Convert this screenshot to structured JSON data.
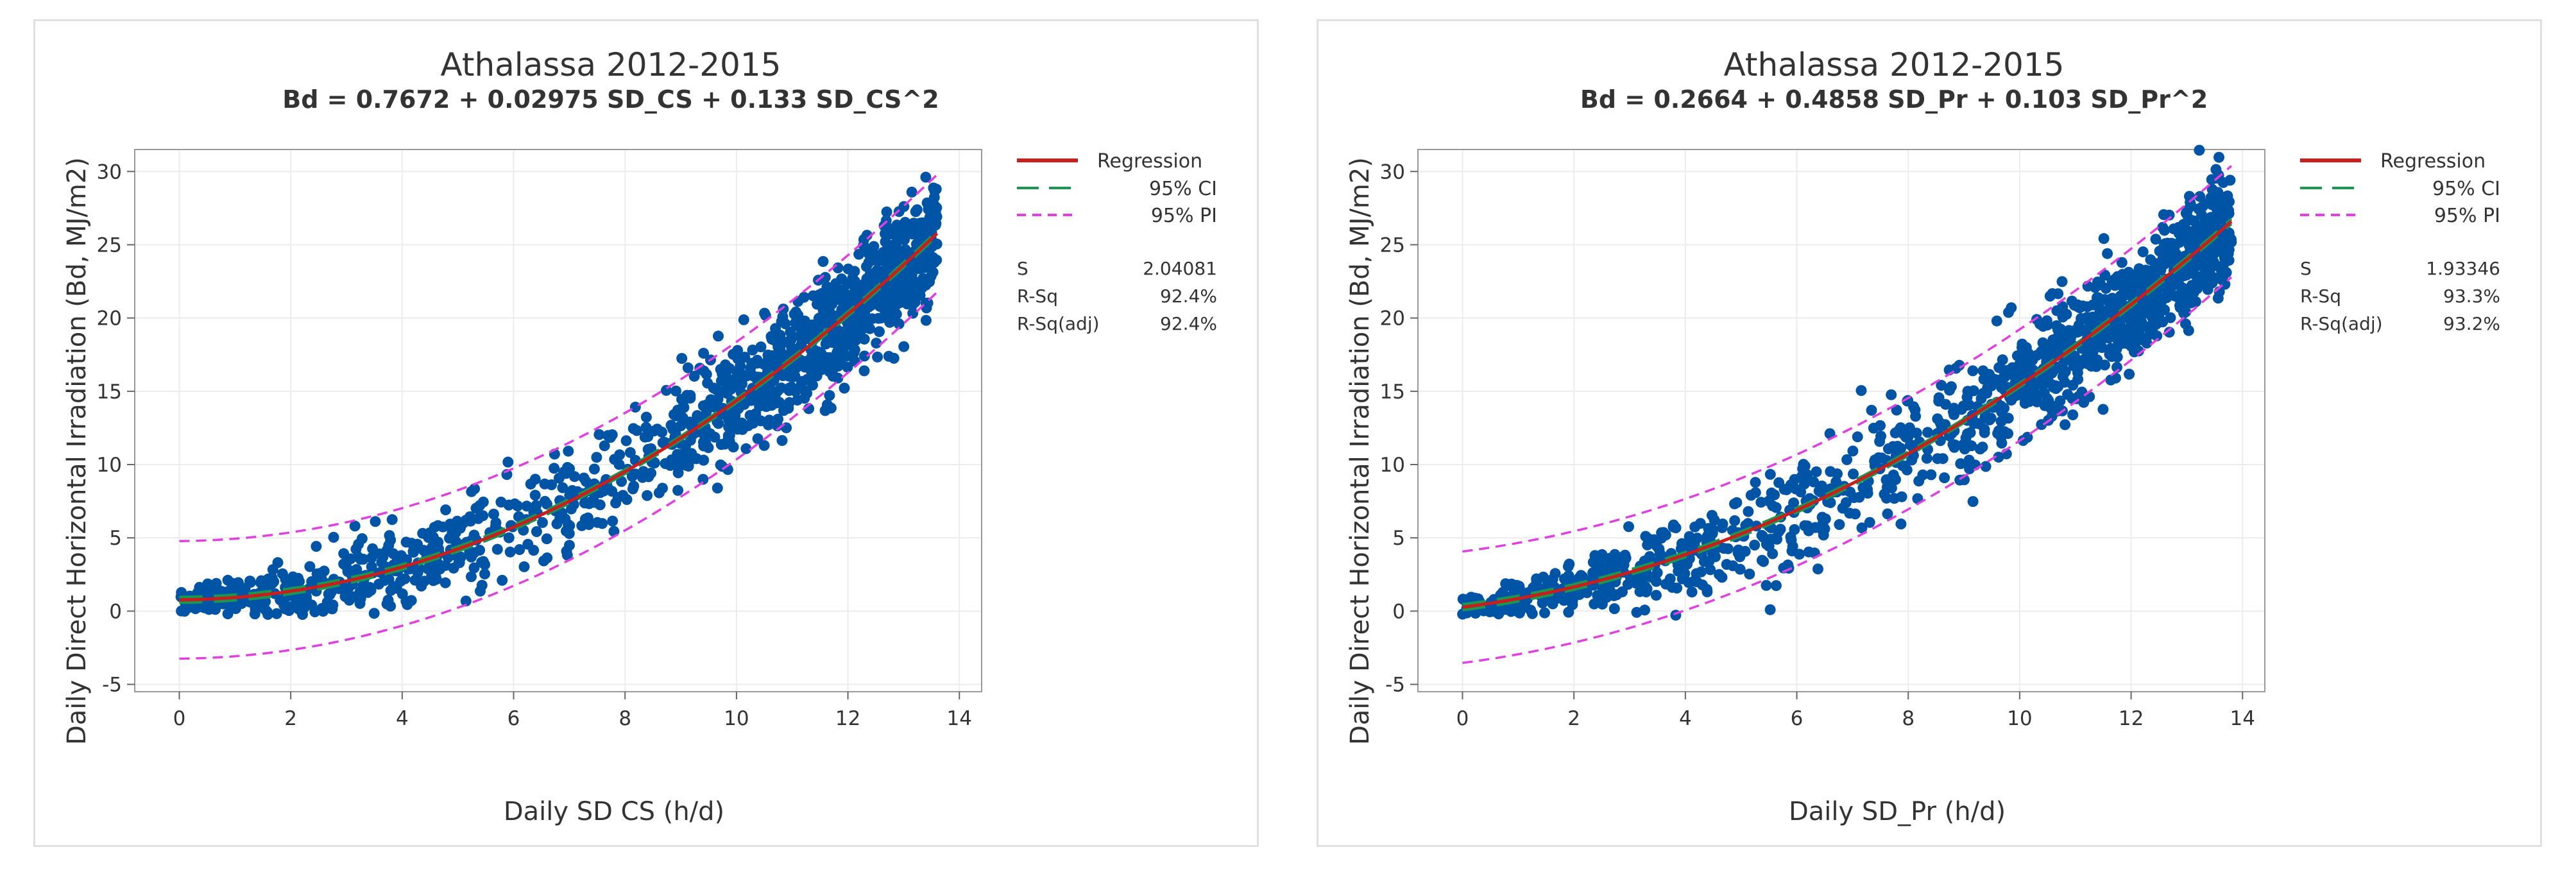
{
  "colors": {
    "points": "#0054a6",
    "regression": "#c81e1e",
    "ci": "#1a9850",
    "pi": "#e040e0",
    "grid": "#ececec",
    "frame": "#999999"
  },
  "chart_data": [
    {
      "type": "scatter",
      "title": "Athalassa 2012-2015",
      "subtitle": "Bd = 0.7672 + 0.02975 SD_CS + 0.133 SD_CS^2",
      "xlabel": "Daily SD CS (h/d)",
      "ylabel": "Daily Direct Horizontal Irradiation (Bd, MJ/m2)",
      "xlim": [
        -0.8,
        14.4
      ],
      "ylim": [
        -5.5,
        31.5
      ],
      "xticks": [
        0,
        2,
        4,
        6,
        8,
        10,
        12,
        14
      ],
      "yticks": [
        -5,
        0,
        5,
        10,
        15,
        20,
        25,
        30
      ],
      "grid": true,
      "legend_position": "right",
      "fit": {
        "intercept": 0.7672,
        "linear": 0.02975,
        "quadratic": 0.133,
        "s": 2.04081
      },
      "point_count": 1300,
      "x_range": [
        0,
        13.6
      ],
      "legend": [
        {
          "label": "Regression",
          "style": "solid",
          "color_key": "regression"
        },
        {
          "label": "95% CI",
          "style": "long-dash",
          "color_key": "ci"
        },
        {
          "label": "95% PI",
          "style": "dash",
          "color_key": "pi"
        }
      ],
      "stats": [
        {
          "label": "S",
          "value": "2.04081"
        },
        {
          "label": "R-Sq",
          "value": "92.4%"
        },
        {
          "label": "R-Sq(adj)",
          "value": "92.4%"
        }
      ]
    },
    {
      "type": "scatter",
      "title": "Athalassa 2012-2015",
      "subtitle": "Bd = 0.2664 + 0.4858 SD_Pr + 0.103 SD_Pr^2",
      "xlabel": "Daily SD_Pr (h/d)",
      "ylabel": "Daily Direct Horizontal Irradiation (Bd, MJ/m2)",
      "xlim": [
        -0.8,
        14.4
      ],
      "ylim": [
        -5.5,
        31.5
      ],
      "xticks": [
        0,
        2,
        4,
        6,
        8,
        10,
        12,
        14
      ],
      "yticks": [
        -5,
        0,
        5,
        10,
        15,
        20,
        25,
        30
      ],
      "grid": true,
      "legend_position": "right",
      "fit": {
        "intercept": 0.2664,
        "linear": 0.4858,
        "quadratic": 0.103,
        "s": 1.93346
      },
      "point_count": 1300,
      "x_range": [
        0,
        13.8
      ],
      "legend": [
        {
          "label": "Regression",
          "style": "solid",
          "color_key": "regression"
        },
        {
          "label": "95% CI",
          "style": "long-dash",
          "color_key": "ci"
        },
        {
          "label": "95% PI",
          "style": "dash",
          "color_key": "pi"
        }
      ],
      "stats": [
        {
          "label": "S",
          "value": "1.93346"
        },
        {
          "label": "R-Sq",
          "value": "93.3%"
        },
        {
          "label": "R-Sq(adj)",
          "value": "93.2%"
        }
      ]
    }
  ]
}
